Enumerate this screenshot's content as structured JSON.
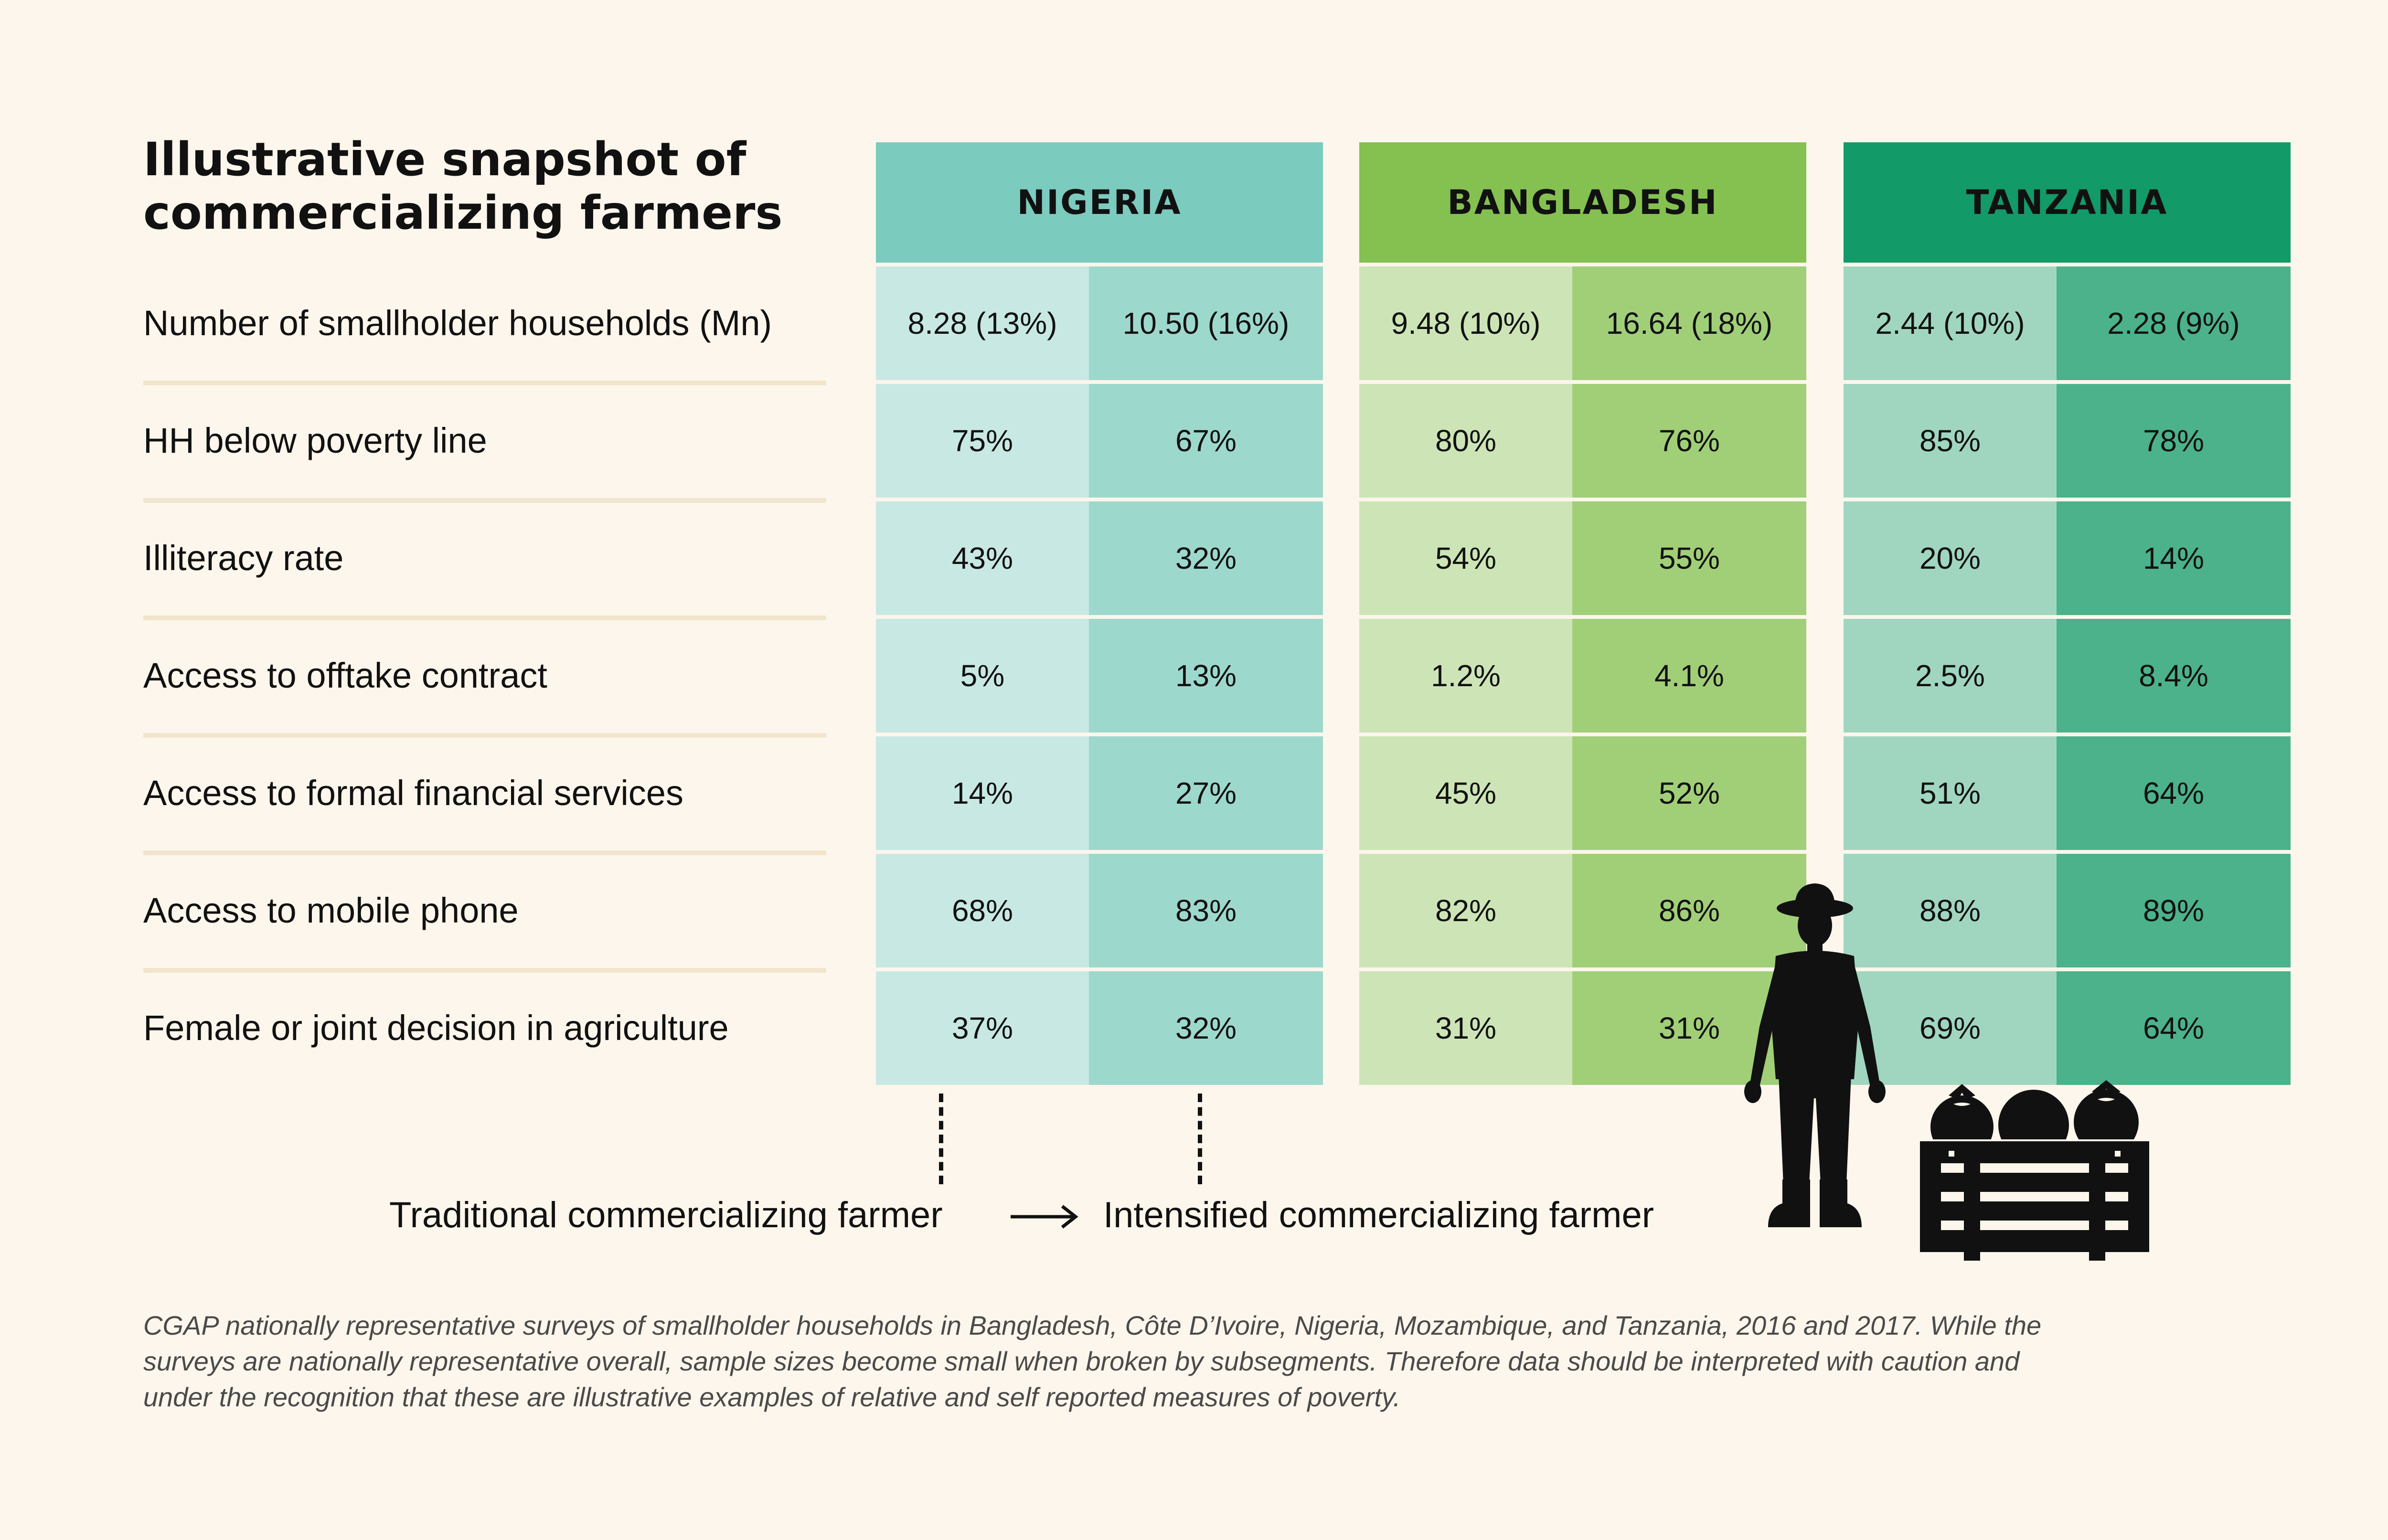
{
  "title_lines": [
    "Illustrative snapshot of",
    "commercializing farmers"
  ],
  "chart_data": {
    "type": "table",
    "row_labels": [
      "Number of smallholder households (Mn)",
      "HH below poverty line",
      "Illiteracy rate",
      "Access to offtake contract",
      "Access to formal financial services",
      "Access to mobile phone",
      "Female or joint decision in agriculture"
    ],
    "countries": [
      {
        "name": "NIGERIA",
        "colors": {
          "header": "#7bcbbf",
          "traditional": "#c8e9e3",
          "intensified": "#9dd8cd"
        },
        "traditional": [
          "8.28 (13%)",
          "75%",
          "43%",
          "5%",
          "14%",
          "68%",
          "37%"
        ],
        "intensified": [
          "10.50 (16%)",
          "67%",
          "32%",
          "13%",
          "27%",
          "83%",
          "32%"
        ]
      },
      {
        "name": "BANGLADESH",
        "colors": {
          "header": "#84c151",
          "traditional": "#cde5b6",
          "intensified": "#a1cf78"
        },
        "traditional": [
          "9.48 (10%)",
          "80%",
          "54%",
          "1.2%",
          "45%",
          "82%",
          "31%"
        ],
        "intensified": [
          "16.64 (18%)",
          "76%",
          "55%",
          "4.1%",
          "52%",
          "86%",
          "31%"
        ]
      },
      {
        "name": "TANZANIA",
        "colors": {
          "header": "#129a68",
          "traditional": "#a0d6c0",
          "intensified": "#4bb28b"
        },
        "traditional": [
          "2.44 (10%)",
          "85%",
          "20%",
          "2.5%",
          "51%",
          "88%",
          "69%"
        ],
        "intensified": [
          "2.28 (9%)",
          "78%",
          "14%",
          "8.4%",
          "64%",
          "89%",
          "64%"
        ]
      }
    ]
  },
  "legend": {
    "traditional": "Traditional commercializing farmer",
    "intensified": "Intensified commercializing farmer"
  },
  "footnote_lines": [
    "CGAP nationally representative surveys of smallholder households in Bangladesh, Côte D’Ivoire, Nigeria, Mozambique, and Tanzania, 2016 and 2017. While the",
    "surveys are nationally representative overall, sample sizes become small when broken by subsegments. Therefore data should be interpreted with caution and",
    "under the recognition that these are illustrative examples of relative and self reported measures of poverty."
  ],
  "icons": [
    "farmer-icon",
    "vegetable-crate-icon",
    "arrow-right-icon"
  ]
}
